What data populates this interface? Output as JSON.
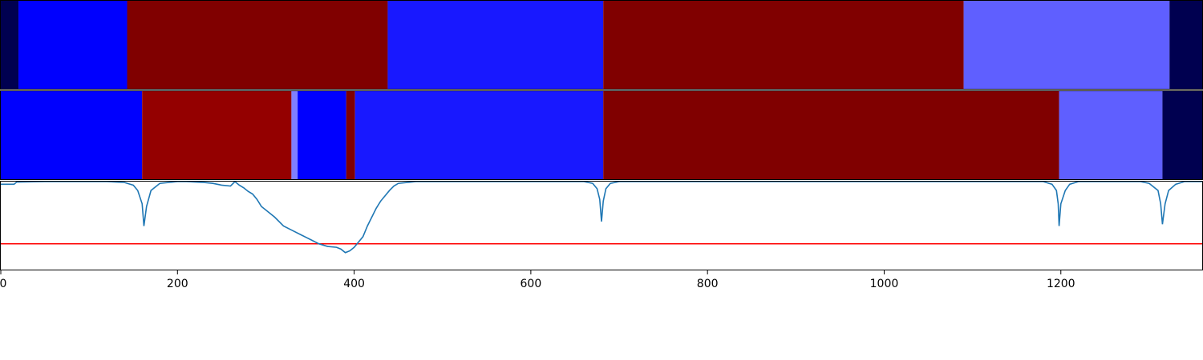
{
  "chart_data": [
    {
      "type": "heatmap",
      "xlim": [
        0,
        1360
      ],
      "segments": [
        {
          "start": 0,
          "end": 20,
          "color": "#000050"
        },
        {
          "start": 20,
          "end": 143,
          "color": "#0000fe"
        },
        {
          "start": 143,
          "end": 438,
          "color": "#800000"
        },
        {
          "start": 438,
          "end": 682,
          "color": "#1818ff"
        },
        {
          "start": 682,
          "end": 1090,
          "color": "#800000"
        },
        {
          "start": 1090,
          "end": 1323,
          "color": "#5f5fff"
        },
        {
          "start": 1323,
          "end": 1360,
          "color": "#000050"
        }
      ]
    },
    {
      "type": "heatmap",
      "xlim": [
        0,
        1360
      ],
      "segments": [
        {
          "start": 0,
          "end": 160,
          "color": "#0000fe"
        },
        {
          "start": 160,
          "end": 329,
          "color": "#940000"
        },
        {
          "start": 329,
          "end": 336,
          "color": "#7f7fff"
        },
        {
          "start": 336,
          "end": 391,
          "color": "#0000fe"
        },
        {
          "start": 391,
          "end": 401,
          "color": "#800000"
        },
        {
          "start": 401,
          "end": 682,
          "color": "#1818ff"
        },
        {
          "start": 682,
          "end": 1198,
          "color": "#800000"
        },
        {
          "start": 1198,
          "end": 1315,
          "color": "#5f5fff"
        },
        {
          "start": 1315,
          "end": 1360,
          "color": "#000050"
        }
      ]
    },
    {
      "type": "line",
      "xlim": [
        0,
        1360
      ],
      "ylim": [
        0,
        1
      ],
      "threshold": 0.3,
      "line_color": "#1f77b4",
      "threshold_color": "#ff0000",
      "xticks": [
        0,
        200,
        400,
        600,
        800,
        1000,
        1200
      ],
      "xtick_labels": [
        "0",
        "200",
        "400",
        "600",
        "800",
        "1000",
        "1200"
      ],
      "x": [
        0,
        15,
        18,
        50,
        120,
        140,
        150,
        155,
        160,
        162,
        165,
        170,
        180,
        200,
        210,
        230,
        240,
        250,
        260,
        265,
        270,
        275,
        280,
        285,
        290,
        295,
        300,
        310,
        320,
        330,
        340,
        350,
        360,
        370,
        380,
        385,
        390,
        395,
        400,
        405,
        410,
        415,
        420,
        425,
        430,
        435,
        440,
        445,
        450,
        470,
        500,
        660,
        670,
        675,
        678,
        680,
        682,
        685,
        690,
        700,
        720,
        1180,
        1190,
        1195,
        1197,
        1198,
        1200,
        1205,
        1210,
        1220,
        1290,
        1300,
        1310,
        1313,
        1315,
        1318,
        1322,
        1330,
        1340,
        1360
      ],
      "y": [
        0.97,
        0.97,
        0.995,
        1.0,
        1.0,
        0.99,
        0.96,
        0.9,
        0.75,
        0.5,
        0.72,
        0.9,
        0.98,
        1.0,
        1.0,
        0.99,
        0.98,
        0.96,
        0.95,
        1.0,
        0.96,
        0.93,
        0.89,
        0.86,
        0.8,
        0.72,
        0.68,
        0.6,
        0.5,
        0.45,
        0.4,
        0.35,
        0.3,
        0.27,
        0.26,
        0.24,
        0.2,
        0.22,
        0.26,
        0.32,
        0.38,
        0.5,
        0.6,
        0.7,
        0.78,
        0.84,
        0.9,
        0.95,
        0.98,
        1.0,
        1.0,
        1.0,
        0.98,
        0.92,
        0.8,
        0.55,
        0.78,
        0.92,
        0.98,
        1.0,
        1.0,
        1.0,
        0.97,
        0.9,
        0.75,
        0.5,
        0.75,
        0.9,
        0.97,
        1.0,
        1.0,
        0.98,
        0.9,
        0.75,
        0.52,
        0.75,
        0.9,
        0.97,
        1.0,
        1.0
      ]
    }
  ]
}
